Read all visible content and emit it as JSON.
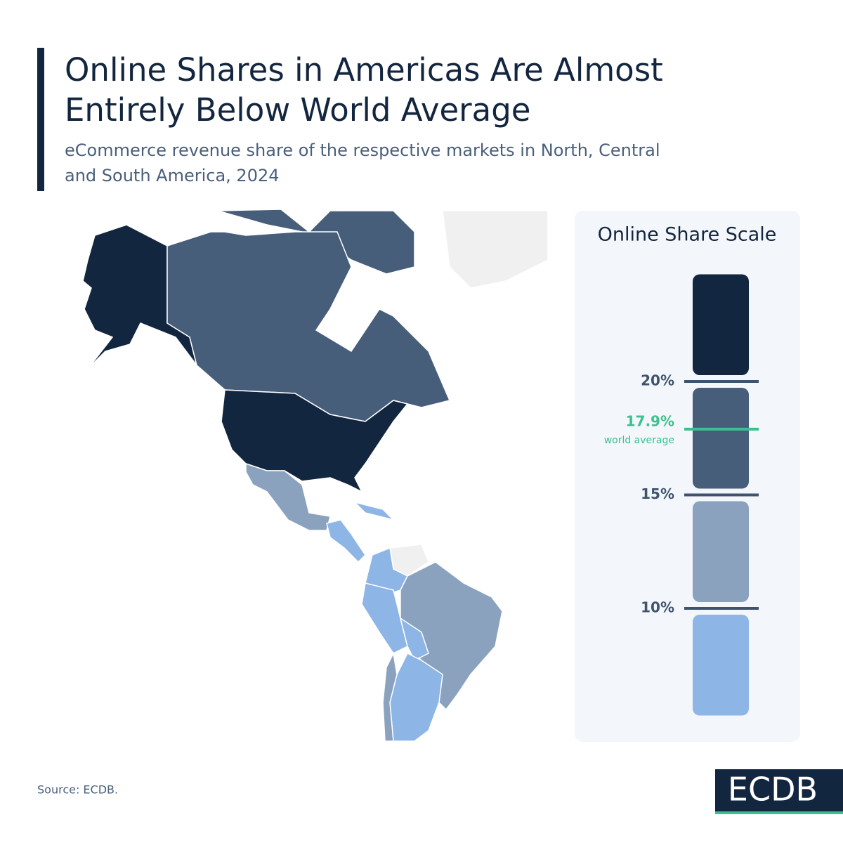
{
  "header": {
    "title": [
      "Online Shares in Americas Are Almost",
      "Entirely Below World Average"
    ],
    "subtitle": [
      "eCommerce revenue share of the respective markets in North, Central",
      "and South America, 2024"
    ]
  },
  "scale": {
    "title": "Online Share Scale",
    "ylim": [
      5,
      25
    ],
    "bins": [
      {
        "color": "#13263f",
        "range": [
          20,
          25
        ]
      },
      {
        "color": "#475e7b",
        "range": [
          15,
          20
        ]
      },
      {
        "color": "#8aa2bd",
        "range": [
          10,
          15
        ]
      },
      {
        "color": "#8db5e5",
        "range": [
          5,
          10
        ]
      }
    ],
    "ticks": [
      {
        "value": 20,
        "label": "20%"
      },
      {
        "value": 15,
        "label": "15%"
      },
      {
        "value": 10,
        "label": "10%"
      }
    ],
    "world_average": {
      "value": 17.9,
      "label": "17.9%",
      "note": "world average",
      "color": "#3cc08f"
    }
  },
  "footer": {
    "source": "Source: ECDB.",
    "logo": "ECDB"
  }
}
